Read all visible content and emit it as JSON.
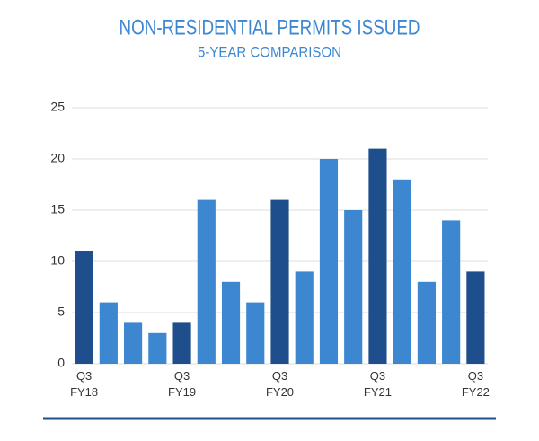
{
  "chart_data": {
    "type": "bar",
    "title": "NON-RESIDENTIAL PERMITS ISSUED",
    "subtitle": "5-YEAR COMPARISON",
    "categories": [
      "Q3 FY18",
      null,
      null,
      null,
      "Q3 FY19",
      null,
      null,
      null,
      "Q3 FY20",
      null,
      null,
      null,
      "Q3 FY21",
      null,
      null,
      null,
      "Q3 FY22"
    ],
    "values": [
      11,
      6,
      4,
      3,
      4,
      16,
      8,
      6,
      16,
      9,
      20,
      15,
      21,
      18,
      8,
      14,
      9
    ],
    "colors": [
      "#1f4e8c",
      "#3d87d0",
      "#3d87d0",
      "#3d87d0",
      "#1f4e8c",
      "#3d87d0",
      "#3d87d0",
      "#3d87d0",
      "#1f4e8c",
      "#3d87d0",
      "#3d87d0",
      "#3d87d0",
      "#1f4e8c",
      "#3d87d0",
      "#3d87d0",
      "#3d87d0",
      "#1f4e8c"
    ],
    "ylim": [
      0,
      25
    ],
    "yticks": [
      0,
      5,
      10,
      15,
      20,
      25
    ],
    "grid": true
  }
}
